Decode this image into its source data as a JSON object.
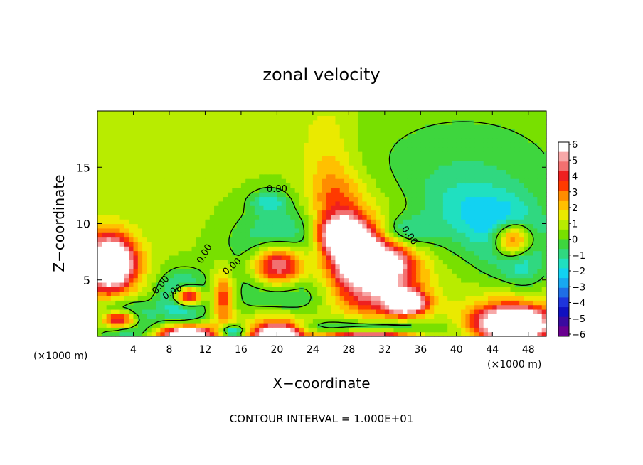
{
  "chart_data": {
    "type": "heatmap",
    "title": "zonal velocity",
    "xlabel": "X−coordinate",
    "ylabel": "Z−coordinate",
    "x_unit_left": "(×1000 m)",
    "x_unit_right": "(×1000 m)",
    "footer": "CONTOUR INTERVAL = 1.000E+01",
    "contour_label_values": [
      "0.00",
      "0.00",
      "0.00",
      "0.00",
      "0.00",
      "0.00"
    ],
    "xlim": [
      0,
      50
    ],
    "ylim": [
      0,
      20
    ],
    "x_ticks": [
      4,
      8,
      12,
      16,
      20,
      24,
      28,
      32,
      36,
      40,
      44,
      48
    ],
    "x_tick_labels": [
      "4",
      "8",
      "12",
      "16",
      "20",
      "24",
      "28",
      "32",
      "36",
      "40",
      "44",
      "48"
    ],
    "y_ticks": [
      5,
      10,
      15
    ],
    "y_tick_labels": [
      "5",
      "10",
      "15"
    ],
    "colorbar": {
      "range": [
        -6,
        6
      ],
      "tick_labels": [
        "6",
        "5",
        "4",
        "3",
        "2",
        "1",
        "0",
        "−1",
        "−2",
        "−3",
        "−4",
        "−5",
        "−6"
      ],
      "colors": [
        "#ffffff",
        "#f7a8a8",
        "#f27070",
        "#ee2020",
        "#ff3a00",
        "#ff8c00",
        "#ffc000",
        "#eaea00",
        "#b8ec00",
        "#78e000",
        "#3ed63e",
        "#30d880",
        "#20e0c0",
        "#12d2f2",
        "#18a8f0",
        "#1f6ee6",
        "#1e34dc",
        "#1010c0",
        "#3a0aa0",
        "#6a0090"
      ]
    },
    "blobs": [
      {
        "x": 0,
        "z": 0,
        "rx": 90,
        "rz": 60,
        "v": 0.8
      },
      {
        "x": 14,
        "z": 16,
        "rx": 12,
        "rz": 5,
        "v": 0.1
      },
      {
        "x": 25.5,
        "z": 17,
        "rx": 3,
        "rz": 4,
        "v": 1.2
      },
      {
        "x": 26.5,
        "z": 12,
        "rx": 3,
        "rz": 3,
        "v": 2.5
      },
      {
        "x": 40,
        "z": 14,
        "rx": 12,
        "rz": 6,
        "v": -1.2
      },
      {
        "x": 42,
        "z": 11,
        "rx": 5,
        "rz": 3,
        "v": -1.8
      },
      {
        "x": 34,
        "z": 9.2,
        "rx": 3,
        "rz": 1.5,
        "v": -2.5
      },
      {
        "x": 46.3,
        "z": 8.6,
        "rx": 3.3,
        "rz": 2.6,
        "v": -4.8
      },
      {
        "x": 46.3,
        "z": 8.6,
        "rx": 2.3,
        "rz": 1.7,
        "v": 8
      },
      {
        "x": 47.5,
        "z": 6,
        "rx": 2,
        "rz": 2,
        "v": -1
      },
      {
        "x": 19,
        "z": 12,
        "rx": 2,
        "rz": 1,
        "v": -2
      },
      {
        "x": 20.5,
        "z": 6.5,
        "rx": 5,
        "rz": 4,
        "v": -4.8
      },
      {
        "x": 20.2,
        "z": 6.3,
        "rx": 3.2,
        "rz": 2,
        "v": 9
      },
      {
        "x": 29.5,
        "z": 7.5,
        "rx": 5,
        "rz": 4.5,
        "v": 3
      },
      {
        "x": 30.5,
        "z": 6.5,
        "rx": 4.5,
        "rz": 2,
        "v": 7
      },
      {
        "x": 27.5,
        "z": 9,
        "rx": 2.5,
        "rz": 1.5,
        "v": 8
      },
      {
        "x": 34.5,
        "z": 3,
        "rx": 2,
        "rz": 1,
        "v": 7
      },
      {
        "x": 32,
        "z": 3.5,
        "rx": 5,
        "rz": 2,
        "v": 3
      },
      {
        "x": 1.5,
        "z": 6.5,
        "rx": 2.5,
        "rz": 2.2,
        "v": 7
      },
      {
        "x": 1,
        "z": 6.5,
        "rx": 3.5,
        "rz": 3,
        "v": 3
      },
      {
        "x": 9.5,
        "z": 3.5,
        "rx": 2.5,
        "rz": 2,
        "v": -4.5
      },
      {
        "x": 10,
        "z": 3.6,
        "rx": 1.6,
        "rz": 0.9,
        "v": 8
      },
      {
        "x": 3,
        "z": 1.5,
        "rx": 3,
        "rz": 1.5,
        "v": -4.5
      },
      {
        "x": 2.5,
        "z": 1.5,
        "rx": 2,
        "rz": 0.8,
        "v": 8
      },
      {
        "x": 14,
        "z": 3.5,
        "rx": 1.2,
        "rz": 2.5,
        "v": 3.5
      },
      {
        "x": 20,
        "z": 1,
        "rx": 3.5,
        "rz": 1.3,
        "v": 3.5
      },
      {
        "x": 20,
        "z": 0.2,
        "rx": 2.5,
        "rz": 0.7,
        "v": 8
      },
      {
        "x": 30,
        "z": 0.3,
        "rx": 8,
        "rz": 1,
        "v": -4
      },
      {
        "x": 30,
        "z": 0,
        "rx": 6,
        "rz": 0.6,
        "v": 9
      },
      {
        "x": 46,
        "z": 1.5,
        "rx": 5,
        "rz": 2,
        "v": 4
      },
      {
        "x": 46.5,
        "z": 1,
        "rx": 3.5,
        "rz": 1.3,
        "v": 8
      },
      {
        "x": 10,
        "z": 0.2,
        "rx": 3,
        "rz": 0.8,
        "v": 8
      },
      {
        "x": 15,
        "z": 0.5,
        "rx": 1.5,
        "rz": 0.5,
        "v": -4
      }
    ]
  }
}
